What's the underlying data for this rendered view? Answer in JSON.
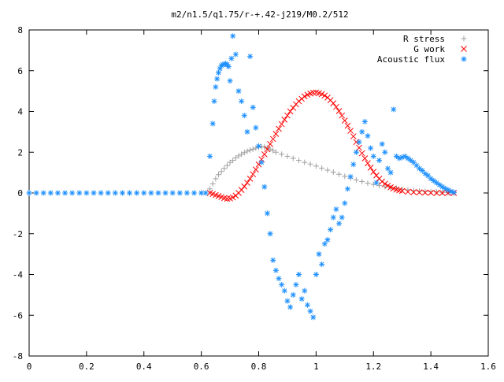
{
  "chart_data": {
    "type": "scatter",
    "title": "m2/n1.5/q1.75/r-+.42-j219/M0.2/512",
    "xlabel": "",
    "ylabel": "",
    "xlim": [
      0,
      1.6
    ],
    "ylim": [
      -8,
      8
    ],
    "grid": false,
    "legend_position": "top-right",
    "x_ticks": [
      0,
      0.2,
      0.4,
      0.6,
      0.8,
      1,
      1.2,
      1.4,
      1.6
    ],
    "x_tick_labels": [
      "0",
      "0.2",
      "0.4",
      "0.6",
      "0.8",
      "1",
      "1.2",
      "1.4",
      "1.6"
    ],
    "y_ticks": [
      -8,
      -6,
      -4,
      -2,
      0,
      2,
      4,
      6,
      8
    ],
    "y_tick_labels": [
      "-8",
      "-6",
      "-4",
      "-2",
      "0",
      "2",
      "4",
      "6",
      "8"
    ],
    "series": [
      {
        "name": "R stress",
        "marker": "plus",
        "color": "#a0a0a0",
        "x": [
          0.63,
          0.64,
          0.65,
          0.66,
          0.67,
          0.68,
          0.69,
          0.7,
          0.71,
          0.72,
          0.73,
          0.74,
          0.75,
          0.76,
          0.77,
          0.78,
          0.79,
          0.8,
          0.81,
          0.82,
          0.83,
          0.84,
          0.85,
          0.86,
          0.88,
          0.9,
          0.92,
          0.94,
          0.96,
          0.98,
          1.0,
          1.02,
          1.04,
          1.06,
          1.08,
          1.1,
          1.12,
          1.14,
          1.16,
          1.18,
          1.2,
          1.22,
          1.24,
          1.26,
          1.28,
          1.3,
          1.32,
          1.34,
          1.36,
          1.38,
          1.4,
          1.42,
          1.44,
          1.46,
          1.48
        ],
        "y": [
          0.2,
          0.45,
          0.7,
          0.9,
          1.05,
          1.2,
          1.35,
          1.5,
          1.6,
          1.72,
          1.82,
          1.9,
          1.98,
          2.05,
          2.1,
          2.15,
          2.2,
          2.25,
          2.27,
          2.25,
          2.2,
          2.15,
          2.08,
          2.0,
          1.9,
          1.8,
          1.7,
          1.6,
          1.5,
          1.42,
          1.32,
          1.22,
          1.12,
          1.02,
          0.92,
          0.82,
          0.73,
          0.64,
          0.56,
          0.48,
          0.42,
          0.36,
          0.31,
          0.26,
          0.22,
          0.18,
          0.15,
          0.12,
          0.1,
          0.08,
          0.06,
          0.05,
          0.03,
          0.02,
          0.01
        ]
      },
      {
        "name": "G work",
        "marker": "cross",
        "color": "#ff0000",
        "x": [
          0.63,
          0.64,
          0.65,
          0.66,
          0.67,
          0.68,
          0.69,
          0.7,
          0.71,
          0.72,
          0.73,
          0.74,
          0.75,
          0.76,
          0.77,
          0.78,
          0.79,
          0.8,
          0.81,
          0.82,
          0.83,
          0.84,
          0.85,
          0.86,
          0.87,
          0.88,
          0.89,
          0.9,
          0.91,
          0.92,
          0.93,
          0.94,
          0.95,
          0.96,
          0.97,
          0.98,
          0.99,
          1.0,
          1.01,
          1.02,
          1.03,
          1.04,
          1.05,
          1.06,
          1.07,
          1.08,
          1.09,
          1.1,
          1.11,
          1.12,
          1.13,
          1.14,
          1.15,
          1.16,
          1.17,
          1.18,
          1.19,
          1.2,
          1.21,
          1.22,
          1.23,
          1.24,
          1.25,
          1.26,
          1.27,
          1.28,
          1.29,
          1.3,
          1.32,
          1.34,
          1.36,
          1.38,
          1.4,
          1.42,
          1.44,
          1.46,
          1.48
        ],
        "y": [
          0.0,
          -0.05,
          -0.1,
          -0.15,
          -0.2,
          -0.25,
          -0.28,
          -0.27,
          -0.22,
          -0.13,
          0.0,
          0.15,
          0.32,
          0.5,
          0.7,
          0.92,
          1.15,
          1.4,
          1.65,
          1.9,
          2.15,
          2.4,
          2.65,
          2.9,
          3.15,
          3.38,
          3.6,
          3.8,
          4.0,
          4.18,
          4.35,
          4.5,
          4.62,
          4.74,
          4.82,
          4.88,
          4.92,
          4.93,
          4.9,
          4.85,
          4.78,
          4.68,
          4.55,
          4.4,
          4.22,
          4.02,
          3.8,
          3.55,
          3.3,
          3.05,
          2.78,
          2.5,
          2.22,
          1.95,
          1.7,
          1.46,
          1.24,
          1.04,
          0.86,
          0.7,
          0.56,
          0.45,
          0.36,
          0.28,
          0.22,
          0.17,
          0.13,
          0.1,
          0.06,
          0.04,
          0.03,
          0.02,
          0.01,
          0.0,
          0.0,
          0.0,
          0.0
        ]
      },
      {
        "name": "Acoustic flux",
        "marker": "star",
        "color": "#1e90ff",
        "x": [
          0.0,
          0.025,
          0.05,
          0.075,
          0.1,
          0.125,
          0.15,
          0.175,
          0.2,
          0.225,
          0.25,
          0.275,
          0.3,
          0.325,
          0.35,
          0.375,
          0.4,
          0.425,
          0.45,
          0.475,
          0.5,
          0.525,
          0.55,
          0.575,
          0.6,
          0.615,
          0.63,
          0.64,
          0.645,
          0.65,
          0.655,
          0.66,
          0.665,
          0.67,
          0.675,
          0.68,
          0.685,
          0.69,
          0.695,
          0.7,
          0.705,
          0.71,
          0.72,
          0.73,
          0.74,
          0.75,
          0.76,
          0.77,
          0.78,
          0.79,
          0.8,
          0.81,
          0.82,
          0.83,
          0.84,
          0.85,
          0.86,
          0.87,
          0.88,
          0.89,
          0.9,
          0.91,
          0.92,
          0.93,
          0.94,
          0.95,
          0.96,
          0.97,
          0.98,
          0.99,
          1.0,
          1.01,
          1.02,
          1.03,
          1.04,
          1.05,
          1.06,
          1.07,
          1.08,
          1.09,
          1.1,
          1.11,
          1.12,
          1.13,
          1.14,
          1.15,
          1.16,
          1.17,
          1.18,
          1.19,
          1.2,
          1.21,
          1.22,
          1.23,
          1.24,
          1.25,
          1.26,
          1.27,
          1.28,
          1.29,
          1.3,
          1.31,
          1.32,
          1.33,
          1.34,
          1.35,
          1.36,
          1.37,
          1.38,
          1.39,
          1.4,
          1.41,
          1.42,
          1.43,
          1.44,
          1.45,
          1.46,
          1.47,
          1.48
        ],
        "y": [
          0,
          0,
          0,
          0,
          0,
          0,
          0,
          0,
          0,
          0,
          0,
          0,
          0,
          0,
          0,
          0,
          0,
          0,
          0,
          0,
          0,
          0,
          0,
          0,
          0,
          0,
          1.8,
          3.4,
          4.5,
          5.2,
          5.6,
          5.9,
          6.1,
          6.25,
          6.3,
          6.32,
          6.35,
          6.3,
          6.2,
          5.5,
          6.6,
          7.7,
          6.8,
          5.0,
          4.5,
          3.8,
          3.0,
          6.7,
          4.2,
          3.2,
          2.3,
          1.5,
          0.3,
          -1.0,
          -2.0,
          -3.3,
          -3.8,
          -4.2,
          -4.5,
          -4.8,
          -5.3,
          -5.6,
          -5.0,
          -4.5,
          -4.0,
          -5.2,
          -4.8,
          -5.5,
          -5.8,
          -6.1,
          -4.0,
          -3.0,
          -3.5,
          -2.5,
          -2.3,
          -1.8,
          -1.2,
          -0.8,
          -1.5,
          -1.2,
          -0.5,
          0.2,
          0.8,
          1.4,
          2.0,
          2.5,
          3.0,
          3.5,
          2.8,
          2.2,
          1.8,
          0.5,
          1.6,
          2.4,
          2.0,
          1.2,
          1.0,
          4.1,
          1.8,
          1.7,
          1.75,
          1.8,
          1.7,
          1.6,
          1.5,
          1.35,
          1.2,
          1.1,
          0.95,
          0.85,
          0.7,
          0.6,
          0.5,
          0.4,
          0.3,
          0.22,
          0.15,
          0.08,
          0.03
        ]
      }
    ]
  }
}
